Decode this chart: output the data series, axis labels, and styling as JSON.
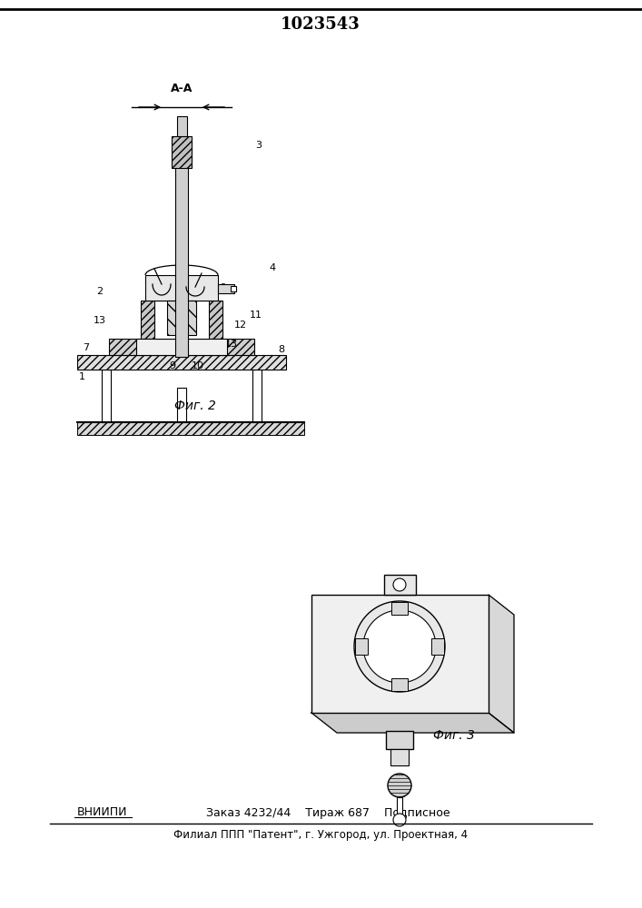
{
  "title": "1023543",
  "bottom_line1": "ВНИИПИ    Заказ 4232/44    Тираж 687    Подписное",
  "bottom_line2": "Филиал ППП \"Патент\", г. Ужгород, ул. Проектная, 4",
  "fig2_label": "Фиг. 2",
  "fig3_label": "Фиг. 3",
  "section_label": "А-А",
  "bg_color": "#ffffff",
  "line_color": "#000000"
}
